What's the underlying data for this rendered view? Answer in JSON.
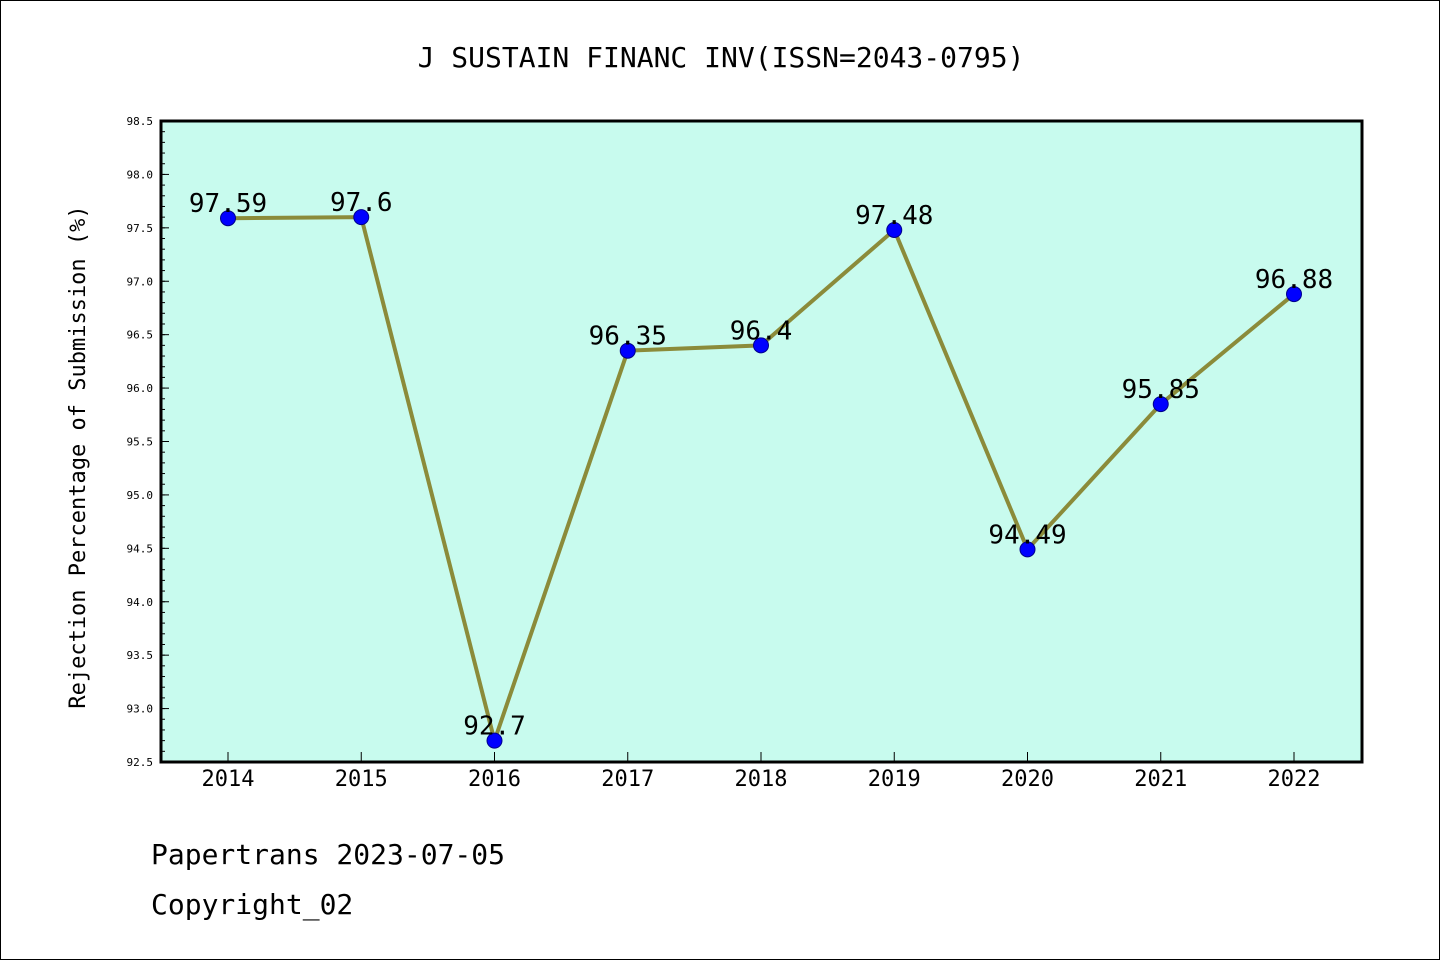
{
  "chart_data": {
    "type": "line",
    "title": "J SUSTAIN FINANC INV(ISSN=2043-0795)",
    "xlabel": "",
    "ylabel": "Rejection Percentage of Submission (%)",
    "categories": [
      "2014",
      "2015",
      "2016",
      "2017",
      "2018",
      "2019",
      "2020",
      "2021",
      "2022"
    ],
    "series": [
      {
        "values": [
          97.59,
          97.6,
          92.7,
          96.35,
          96.4,
          97.48,
          94.49,
          95.85,
          96.88
        ],
        "labels": [
          "97.59",
          "97.6",
          "92.7",
          "96.35",
          "96.4",
          "97.48",
          "94.49",
          "95.85",
          "96.88"
        ],
        "line_color": "#8b8b3a",
        "marker_color": "#0000ff"
      }
    ],
    "ylim": [
      92.5,
      98.5
    ],
    "yticks": [
      "92.5",
      "93.0",
      "93.5",
      "94.0",
      "94.5",
      "95.0",
      "95.5",
      "96.0",
      "96.5",
      "97.0",
      "97.5",
      "98.0",
      "98.5"
    ],
    "grid": false,
    "plot_background": "#c8fbee"
  },
  "footer": {
    "line1": "Papertrans 2023-07-05",
    "line2": "Copyright_02"
  }
}
